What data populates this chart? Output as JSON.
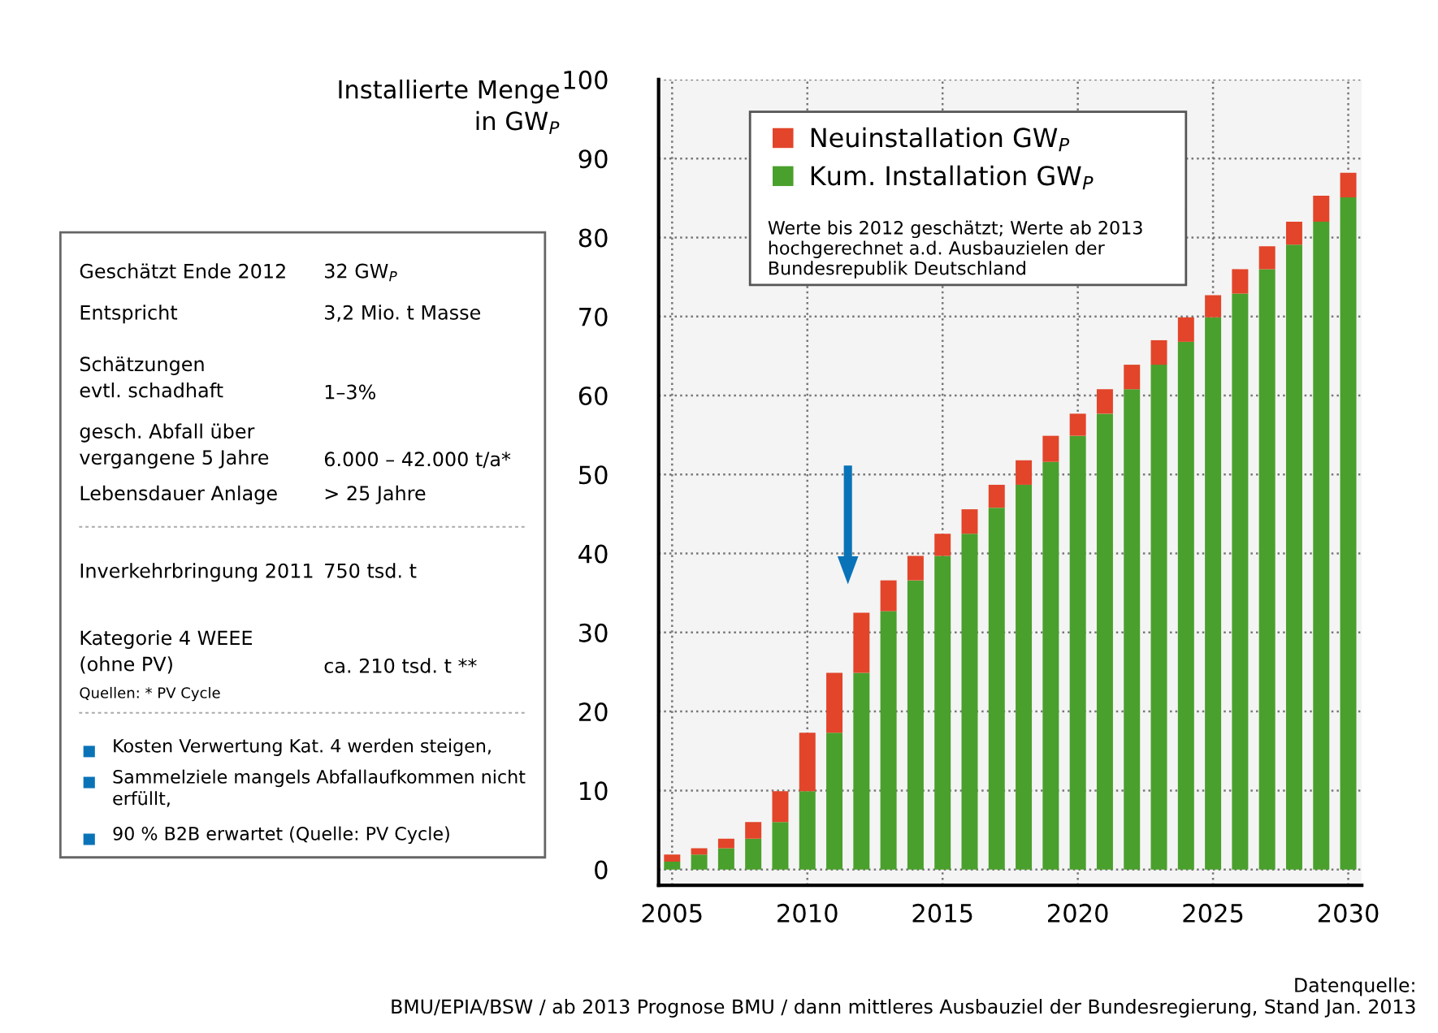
{
  "chart_data": {
    "type": "bar",
    "stacked": true,
    "ylabel": "Installierte Menge\nin GW$_{P}$",
    "x": [
      2005,
      2006,
      2007,
      2008,
      2009,
      2010,
      2011,
      2012,
      2013,
      2014,
      2015,
      2016,
      2017,
      2018,
      2019,
      2020,
      2021,
      2022,
      2023,
      2024,
      2025,
      2026,
      2027,
      2028,
      2029,
      2030
    ],
    "series": [
      {
        "name": "Kum. Installation GW$_{P}$",
        "color": "#4aa02c",
        "values": [
          1.0,
          1.9,
          2.7,
          3.9,
          6.0,
          9.9,
          17.3,
          24.9,
          32.7,
          36.6,
          39.7,
          42.5,
          45.8,
          48.7,
          51.6,
          54.9,
          57.7,
          60.8,
          63.9,
          66.8,
          69.9,
          72.9,
          76.0,
          79.1,
          82.0,
          85.1
        ]
      },
      {
        "name": "Neuinstallation GW$_{P}$",
        "color": "#e2452a",
        "values": [
          0.9,
          0.8,
          1.2,
          2.1,
          3.9,
          7.4,
          7.6,
          7.6,
          3.9,
          3.1,
          2.8,
          3.1,
          2.9,
          3.1,
          3.3,
          2.8,
          3.1,
          3.1,
          3.1,
          3.1,
          2.8,
          3.1,
          2.9,
          2.9,
          3.3,
          3.1
        ]
      }
    ],
    "xlim": [
      2004.5,
      2030.5
    ],
    "xticks": [
      2005,
      2010,
      2015,
      2020,
      2025,
      2030
    ],
    "ylim": [
      -2,
      100
    ],
    "yticks": [
      0,
      10,
      20,
      30,
      40,
      50,
      60,
      70,
      80,
      90,
      100
    ],
    "grid": true,
    "legend": "top left",
    "annotations": [
      "Werte bis 2012 geschätzt; Werte ab 2013\nhochgerechnet a.d. Ausbauzielen der\nBundesrepublik Deutschland",
      "Datenquelle:\nBMU/EPIA/BSW / ab 2013 Prognose BMU / dann mittleres Ausbauziel der Bundesregierung, Stand Jan. 2013",
      "Geschätzt Ende 2012",
      "32 GW$_{P}$",
      "Entspricht",
      "3,2 Mio. t Masse",
      "Schätzungen\nevtl. schadhaft",
      "1–3%",
      "gesch. Abfall über\nvergangene 5 Jahre",
      "6.000 – 42.000 t/a*",
      "Lebensdauer Anlage",
      "> 25 Jahre",
      "Inverkehrbringung 2011",
      "750 tsd. t",
      "Kategorie 4 WEEE\n(ohne PV)",
      "ca. 210 tsd. t **",
      "Quellen: * PV Cycle",
      "Kosten Verwertung Kat. 4 werden steigen,",
      "Sammelziele mangels Abfallaufkommen nicht\nerfüllt,",
      "90 % B2B erwartet (Quelle: PV Cycle)"
    ]
  }
}
